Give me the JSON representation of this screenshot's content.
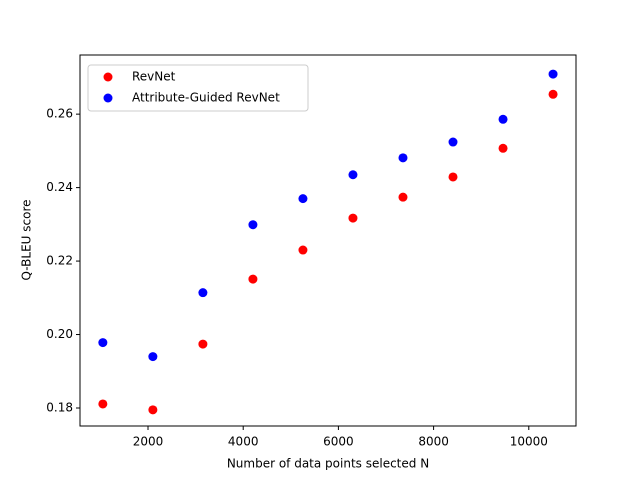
{
  "chart_data": {
    "type": "scatter",
    "xlabel": "Number of data points selected N",
    "ylabel": "Q-BLEU score",
    "xlim": [
      571,
      10992
    ],
    "ylim": [
      0.1751,
      0.2761
    ],
    "xticks": [
      2000,
      4000,
      6000,
      8000,
      10000
    ],
    "yticks": [
      0.18,
      {
        "value": 0.2,
        "label": "0.20"
      },
      0.22,
      0.24,
      0.26
    ],
    "legend": "upper left",
    "series": [
      {
        "name": "RevNet",
        "color": "#ff0000",
        "x": [
          1051,
          2102,
          3153,
          4204,
          5255,
          6306,
          7357,
          8408,
          9459,
          10510
        ],
        "values": [
          0.1811,
          0.1795,
          0.1974,
          0.2151,
          0.223,
          0.2317,
          0.2374,
          0.2429,
          0.2507,
          0.2654
        ]
      },
      {
        "name": "Attribute-Guided RevNet",
        "color": "#0000ff",
        "x": [
          1051,
          2102,
          3153,
          4204,
          5255,
          6306,
          7357,
          8408,
          9459,
          10510
        ],
        "values": [
          0.1978,
          0.194,
          0.2114,
          0.2299,
          0.237,
          0.2435,
          0.2481,
          0.2524,
          0.2586,
          0.2709
        ]
      }
    ]
  }
}
